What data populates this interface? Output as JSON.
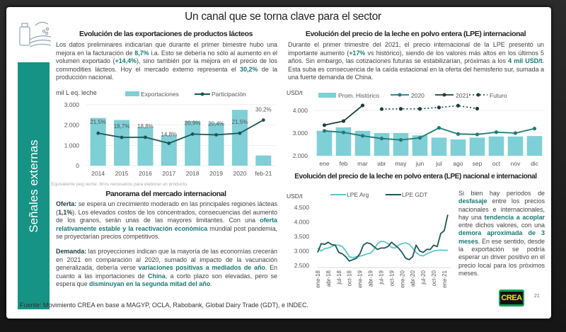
{
  "title": "Un canal que se torna clave para el sector",
  "sidebar": {
    "label": "Señales externas"
  },
  "left": {
    "heading": "Evolución de las exportaciones de productos lácteos",
    "p1": [
      "Los datos preliminares indicarían que durante el primer bimestre hubo una mejora en la facturación de ",
      "8,7%",
      " i.a. Esto se debería no sólo al aumento en el volumen exportado (",
      "+14,4%",
      "), sino también por la mejora en el precio de los commodities lácteos. Hoy el mercado externo representa el ",
      "30,2%",
      " de la producción nacional."
    ],
    "footnote": "Equivalente (eq) leche: litros necesarios para elaborar un producto.",
    "heading2": "Panorama del mercado internacional",
    "oferta": [
      "Oferta:",
      " se espera un crecimiento moderado en las principales regiones lácteas (",
      "1,1%",
      "). Los elevados costos de los concentrados, consecuencias del aumento de los granos, serán unas de las mayores limitantes. Con una ",
      "oferta relativamente estable y la reactivación económica",
      " mundial post pandemia, se proyectarían precios competitivos."
    ],
    "demanda": [
      "Demanda:",
      " las proyecciones indican que la mayoría de las economías crecerán en 2021 en comparación al 2020, sumado al impacto de la vacunación generalizada, debería verse ",
      "variaciones positivas a mediados de año",
      ". En cuanto a las importaciones de ",
      "China",
      ", a corto plazo son elevadas, pero se espera que ",
      "disminuyan en la segunda mitad del año",
      "."
    ]
  },
  "right": {
    "heading": "Evolución del precio de la leche en polvo entera (LPE) internacional",
    "p1": [
      "Durante el primer trimestre del 2021, el precio internacional de la LPE presentó un importante aumento (",
      "+17%",
      " vs histórico), siendo de los valores más altos en los últimos 5 años. Sin embargo, las cotizaciones futuras se estabilizarían, próximas a los ",
      "4 mil USD/t",
      ". Esta suba es consecuencia de la caída estacional en la oferta del hemisferio sur, sumada a una fuerte demanda de China."
    ],
    "heading2": "Evolución del precio de la leche en polvo entera (LPE) nacional e internacional",
    "side_text": [
      "Si bien hay períodos de ",
      "desfasaje",
      " entre los precios nacionales e internacionales, hay una ",
      "tendencia a acoplar",
      " entre dichos valores, con una ",
      "demora aproximada de 3 meses",
      ". En ese sentido, desde la exportación se podría esperar un driver positivo en el precio local para los próximos meses."
    ]
  },
  "source": "Fuente: Movimiento CREA en base a MAGYP, OCLA, Rabobank, Global Dairy Trade (GDT), e INDEC.",
  "logo": "CREA",
  "page_number": "21",
  "colors": {
    "accent": "#169385",
    "bar": "#7fcfd6",
    "line_dark": "#1d5656",
    "line_light": "#5cc6cc",
    "highlight": "#1a7a76"
  },
  "chart_data": [
    {
      "type": "bar",
      "ylabel": "mil L eq. leche",
      "ylim": [
        0,
        3000
      ],
      "yticks": [
        "0",
        "1.000",
        "2.000",
        "3.000"
      ],
      "categories": [
        "2014",
        "2015",
        "2016",
        "2017",
        "2018",
        "2019",
        "2020",
        "feb-21"
      ],
      "series": [
        {
          "name": "Exportaciones",
          "type": "bar",
          "values": [
            2350,
            2250,
            1900,
            1500,
            2200,
            2100,
            2750,
            500
          ]
        },
        {
          "name": "Participación",
          "type": "line",
          "values": [
            21.5,
            18.7,
            18.8,
            14.8,
            20.9,
            20.4,
            21.5,
            30.2
          ],
          "labels": [
            "21,5%",
            "18,7%",
            "18,8%",
            "14,8%",
            "20,9%",
            "20,4%",
            "21,5%",
            "30,2%"
          ]
        }
      ],
      "legend": "top"
    },
    {
      "type": "bar",
      "ylabel": "USD/t",
      "ylim": [
        2000,
        4300
      ],
      "yticks": [
        "2.000",
        "3.000",
        "4.000"
      ],
      "categories": [
        "ene",
        "feb",
        "mar",
        "abr",
        "may",
        "jun",
        "jul",
        "ago",
        "sep",
        "oct",
        "nov",
        "dic"
      ],
      "series": [
        {
          "name": "Prom. Histórico",
          "type": "bar",
          "values": [
            3100,
            3250,
            3100,
            3000,
            3000,
            2900,
            2800,
            2720,
            2800,
            2850,
            2850,
            2870
          ]
        },
        {
          "name": "2020",
          "type": "line",
          "values": [
            3100,
            3030,
            2880,
            2760,
            2700,
            2790,
            3230,
            2960,
            2940,
            3040,
            3000,
            3200
          ]
        },
        {
          "name": "2021",
          "type": "line",
          "values": [
            3350,
            3530,
            4220,
            null,
            null,
            null,
            null,
            null,
            null,
            null,
            null,
            null
          ]
        },
        {
          "name": "Futuro",
          "type": "dotted",
          "values": [
            null,
            null,
            null,
            4060,
            4070,
            4070,
            4130,
            4210,
            4080,
            null,
            null,
            null
          ]
        }
      ],
      "legend": "top"
    },
    {
      "type": "line",
      "ylabel": "USD/t",
      "ylim": [
        2500,
        4500
      ],
      "yticks": [
        "2.500",
        "3.000",
        "3.500",
        "4.000",
        "4.500"
      ],
      "xticks": [
        "ene-18",
        "abr-18",
        "jul-18",
        "oct-18",
        "ene-19",
        "abr-19",
        "jul-19",
        "oct-19",
        "ene-20",
        "abr-20",
        "jul-20",
        "oct-20",
        "ene-21"
      ],
      "series": [
        {
          "name": "LPE Arg",
          "values": [
            3100,
            3000,
            3080,
            3100,
            3150,
            3200,
            3200,
            3150,
            3000,
            2800,
            2770,
            2800,
            2820,
            2850,
            2900,
            2920,
            3050,
            3250,
            3330,
            3320,
            3250,
            3120,
            3100,
            3200,
            3250,
            3280,
            3230,
            3100,
            2950,
            2850,
            2830,
            2900,
            2950,
            3000,
            3020,
            3030,
            3020,
            3020
          ]
        },
        {
          "name": "LPE GDT",
          "values": [
            2950,
            3250,
            3230,
            3300,
            3220,
            3200,
            2950,
            2900,
            2800,
            2650,
            2700,
            2750,
            2900,
            3200,
            3280,
            3250,
            3150,
            3050,
            3100,
            3100,
            3150,
            3300,
            3200,
            3100,
            2950,
            2750,
            2700,
            2800,
            3200,
            3000,
            2950,
            3050,
            3050,
            3200,
            3150,
            3600,
            3700,
            4250
          ]
        }
      ],
      "legend": "top"
    }
  ]
}
